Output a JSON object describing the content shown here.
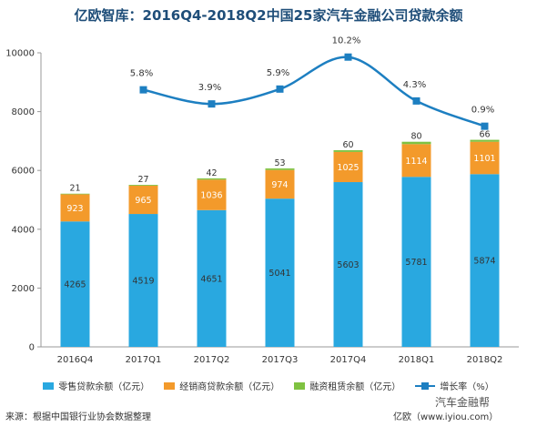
{
  "chart_data": {
    "type": "bar",
    "title": "亿欧智库：2016Q4-2018Q2中国25家汽车金融公司贷款余额",
    "categories": [
      "2016Q4",
      "2017Q1",
      "2017Q2",
      "2017Q3",
      "2017Q4",
      "2018Q1",
      "2018Q2"
    ],
    "series": [
      {
        "name": "零售贷款余额（亿元）",
        "values": [
          4265,
          4519,
          4651,
          5041,
          5603,
          5781,
          5874
        ],
        "color": "#29a8e0"
      },
      {
        "name": "经销商贷款余额（亿元）",
        "values": [
          923,
          965,
          1036,
          974,
          1025,
          1114,
          1101
        ],
        "color": "#f39a2b"
      },
      {
        "name": "融资租赁余额（亿元）",
        "values": [
          21,
          27,
          42,
          53,
          60,
          80,
          66
        ],
        "color": "#7fc241"
      }
    ],
    "growth_line": {
      "name": "增长率（%）",
      "categories": [
        "2017Q1",
        "2017Q2",
        "2017Q3",
        "2017Q4",
        "2018Q1",
        "2018Q2"
      ],
      "values": [
        5.8,
        3.9,
        5.9,
        10.2,
        4.3,
        0.9
      ],
      "labels": [
        "5.8%",
        "3.9%",
        "5.9%",
        "10.2%",
        "4.3%",
        "0.9%"
      ],
      "color": "#1d7fc1"
    },
    "ylim": [
      0,
      10000
    ],
    "yticks": [
      0,
      2000,
      4000,
      6000,
      8000,
      10000
    ],
    "grid": false,
    "legend_position": "bottom"
  },
  "source_text": "来源：根据中国银行业协会数据整理",
  "credit_text": "亿欧（www.iyiou.com）",
  "watermark_text": "汽车金融帮"
}
